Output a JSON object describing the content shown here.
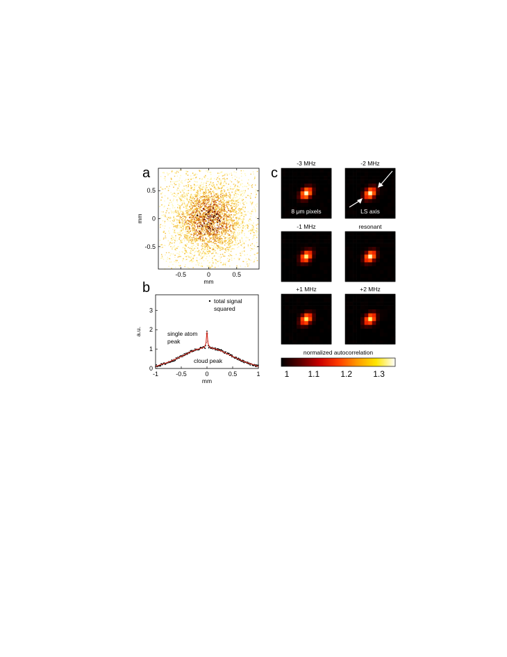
{
  "panels": {
    "a": {
      "letter": "a"
    },
    "b": {
      "letter": "b"
    },
    "c": {
      "letter": "c"
    }
  },
  "chart_data": [
    {
      "type": "scatter",
      "panel": "a",
      "description_kind": "absorption image speckle",
      "xlabel": "mm",
      "ylabel": "mm",
      "xlim": [
        -0.9,
        0.9
      ],
      "ylim": [
        0.9,
        -0.9
      ],
      "xticks": [
        -0.5,
        0,
        0.5
      ],
      "xtick_labels": [
        "-0.5",
        "0",
        "0.5"
      ],
      "yticks": [
        -0.5,
        0,
        0.5
      ],
      "ytick_labels": [
        "-0.5",
        "0",
        "0.5"
      ],
      "cloud_center": [
        0,
        0
      ],
      "cloud_sigma_mm": 0.35,
      "colors": [
        "#fff6b0",
        "#f5c64a",
        "#e28a1c",
        "#c4521a",
        "#7a200c",
        "#2a0a05"
      ]
    },
    {
      "type": "line",
      "panel": "b",
      "xlabel": "mm",
      "ylabel": "a.u.",
      "xlim": [
        -1,
        1
      ],
      "ylim": [
        0,
        3.8
      ],
      "xticks": [
        -1,
        -0.5,
        0,
        0.5,
        1
      ],
      "xtick_labels": [
        "-1",
        "-0.5",
        "0",
        "0.5",
        "1"
      ],
      "yticks": [
        0,
        1,
        2,
        3
      ],
      "ytick_labels": [
        "0",
        "1",
        "2",
        "3"
      ],
      "series": [
        {
          "name": "total signal squared",
          "style": "dots",
          "color": "#000000"
        },
        {
          "name": "",
          "style": "line",
          "color": "#d42a1e"
        }
      ],
      "curve": {
        "x": [
          -1.0,
          -0.9,
          -0.8,
          -0.7,
          -0.6,
          -0.5,
          -0.4,
          -0.3,
          -0.2,
          -0.1,
          -0.05,
          -0.02,
          0.0,
          0.02,
          0.05,
          0.1,
          0.2,
          0.3,
          0.4,
          0.5,
          0.6,
          0.7,
          0.8,
          0.9,
          1.0
        ],
        "y": [
          0.1,
          0.2,
          0.28,
          0.38,
          0.5,
          0.62,
          0.75,
          0.88,
          0.98,
          1.05,
          1.1,
          1.3,
          1.9,
          1.3,
          1.1,
          1.05,
          0.98,
          0.88,
          0.75,
          0.62,
          0.5,
          0.38,
          0.28,
          0.2,
          0.1
        ]
      },
      "annotations": [
        {
          "text_lines": [
            "total signal",
            "squared"
          ]
        },
        {
          "text_lines": [
            "single atom",
            "peak"
          ]
        },
        {
          "text_lines": [
            "cloud peak"
          ]
        }
      ]
    },
    {
      "type": "heatmap",
      "panel": "c",
      "subplots": [
        {
          "title": "-3 MHz",
          "inner_label": "8 μm pixels"
        },
        {
          "title": "-2 MHz",
          "inner_label": "LS axis"
        },
        {
          "title": "-1 MHz",
          "inner_label": ""
        },
        {
          "title": "resonant",
          "inner_label": ""
        },
        {
          "title": "+1 MHz",
          "inner_label": ""
        },
        {
          "title": "+2 MHz",
          "inner_label": ""
        }
      ],
      "grid_size": 13,
      "peak_values": [
        1.34,
        1.33,
        1.32,
        1.33,
        1.32,
        1.32
      ],
      "background_value": 1.0,
      "colorbar": {
        "label": "normalized autocorrelation",
        "range": [
          1.0,
          1.35
        ],
        "ticks": [
          1,
          1.1,
          1.2,
          1.3
        ],
        "tick_labels": [
          "1",
          "1.1",
          "1.2",
          "1.3"
        ],
        "colors": [
          "#000000",
          "#5a0000",
          "#c80000",
          "#ff3a00",
          "#ff9a00",
          "#ffe600",
          "#ffffff"
        ]
      }
    }
  ]
}
